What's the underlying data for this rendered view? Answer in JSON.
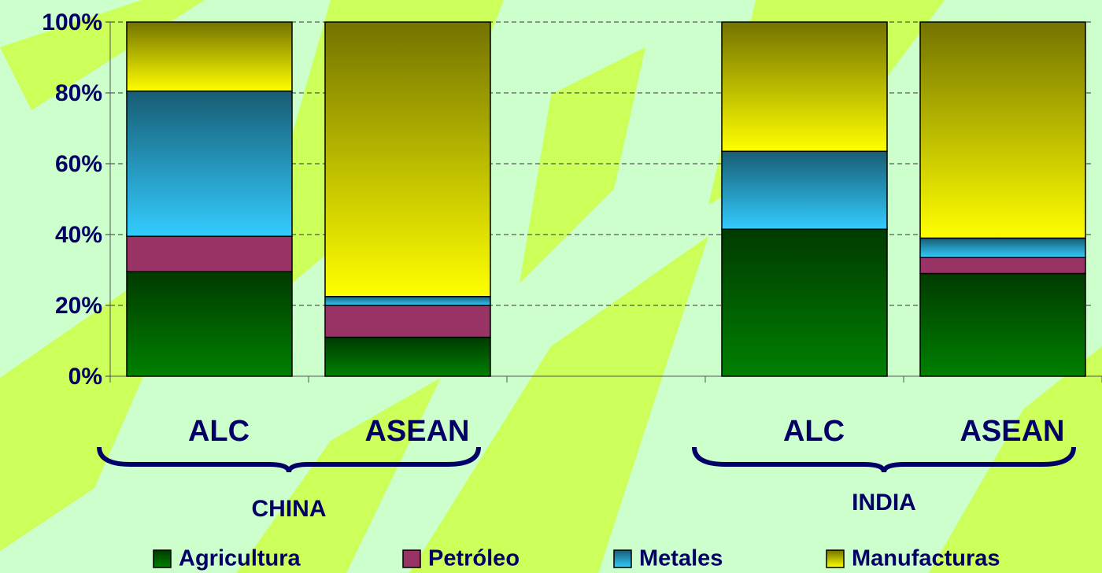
{
  "chart_data": {
    "type": "stacked_bar",
    "categories": [
      "ALC",
      "ASEAN",
      null,
      "ALC",
      "ASEAN"
    ],
    "groups": [
      "CHINA",
      "INDIA"
    ],
    "series": [
      {
        "name": "Agricultura",
        "color": "#008000",
        "values": [
          29.5,
          11,
          null,
          41.5,
          29
        ]
      },
      {
        "name": "Petróleo",
        "color": "#993366",
        "values": [
          10,
          9,
          null,
          0,
          4.5
        ]
      },
      {
        "name": "Metales",
        "color": "#33ccff",
        "values": [
          41,
          2.5,
          null,
          22,
          5.5
        ]
      },
      {
        "name": "Manufacturas",
        "color": "#ffff00",
        "values": [
          19.5,
          77.5,
          null,
          36.5,
          61
        ]
      }
    ],
    "ylim": [
      0,
      100
    ],
    "yticks": [
      {
        "value": 0,
        "label": "0%"
      },
      {
        "value": 20,
        "label": "20%"
      },
      {
        "value": 40,
        "label": "40%"
      },
      {
        "value": 60,
        "label": "60%"
      },
      {
        "value": 80,
        "label": "80%"
      },
      {
        "value": 100,
        "label": "100%"
      }
    ],
    "grid": true
  }
}
